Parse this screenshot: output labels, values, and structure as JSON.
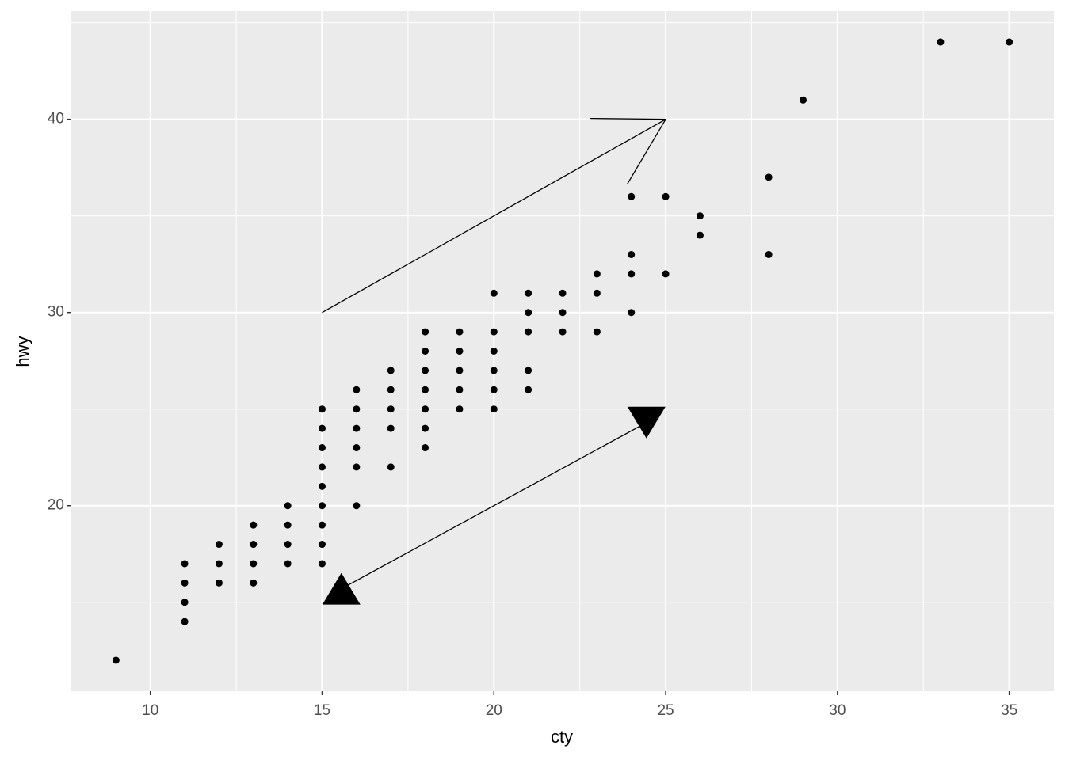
{
  "chart_data": {
    "type": "scatter",
    "x_label": "cty",
    "y_label": "hwy",
    "x": [
      9,
      11,
      11,
      11,
      11,
      12,
      12,
      12,
      13,
      13,
      13,
      13,
      14,
      14,
      14,
      14,
      15,
      15,
      15,
      15,
      15,
      15,
      15,
      15,
      15,
      16,
      16,
      16,
      16,
      16,
      16,
      17,
      17,
      17,
      17,
      17,
      18,
      18,
      18,
      18,
      18,
      18,
      18,
      19,
      19,
      19,
      19,
      19,
      20,
      20,
      20,
      20,
      20,
      20,
      21,
      21,
      21,
      21,
      21,
      22,
      22,
      22,
      23,
      23,
      23,
      24,
      24,
      24,
      24,
      25,
      25,
      26,
      26,
      28,
      28,
      29,
      33,
      35
    ],
    "y": [
      12,
      17,
      16,
      15,
      14,
      18,
      17,
      16,
      19,
      18,
      17,
      16,
      20,
      19,
      18,
      17,
      25,
      24,
      23,
      22,
      21,
      20,
      19,
      18,
      17,
      26,
      25,
      24,
      23,
      22,
      20,
      27,
      26,
      25,
      24,
      22,
      29,
      28,
      27,
      26,
      25,
      24,
      23,
      29,
      28,
      27,
      26,
      25,
      31,
      29,
      28,
      27,
      26,
      25,
      31,
      30,
      29,
      27,
      26,
      31,
      30,
      29,
      32,
      31,
      29,
      36,
      33,
      32,
      30,
      36,
      32,
      35,
      34,
      37,
      33,
      41,
      44,
      44
    ],
    "color": "#000000",
    "annotations": [
      {
        "type": "segment",
        "arrow": "open",
        "x": [
          15,
          25
        ],
        "y": [
          30,
          40
        ]
      },
      {
        "type": "segment",
        "arrow": "none",
        "x": [
          15.56,
          24.44
        ],
        "y": [
          15.7,
          24.3
        ]
      },
      {
        "type": "triangle-up",
        "x": 15.56,
        "y": 15.7
      },
      {
        "type": "triangle-down",
        "x": 24.44,
        "y": 24.3
      }
    ],
    "xlim": [
      7.7,
      36.3
    ],
    "ylim": [
      10.4,
      45.6
    ],
    "xticks": [
      10,
      15,
      20,
      25,
      30,
      35
    ],
    "yticks": [
      20,
      30,
      40
    ],
    "minor_xticks": [
      12.5,
      17.5,
      22.5,
      27.5,
      32.5
    ],
    "minor_yticks": [
      15,
      25,
      35,
      45
    ],
    "grid": true,
    "panel_color": "#ebebeb"
  }
}
